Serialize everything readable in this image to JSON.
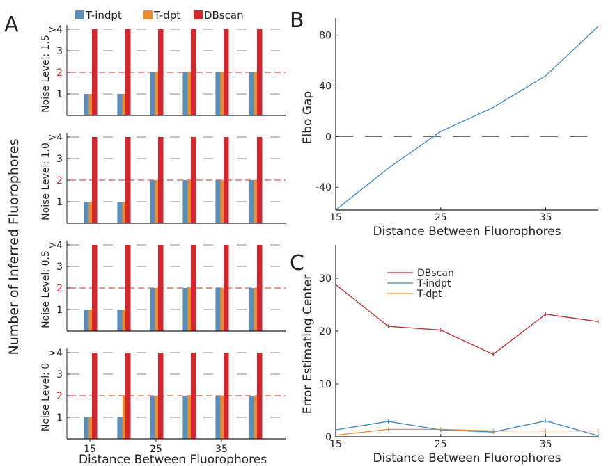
{
  "figure": {
    "panel_labels": [
      "A",
      "B",
      "C"
    ],
    "legend_a": [
      {
        "label": "T-indpt",
        "color": "#5b8fb9"
      },
      {
        "label": "T-dpt",
        "color": "#f08a24"
      },
      {
        "label": "DBscan",
        "color": "#d7252d"
      }
    ],
    "ylabel_a": "Number of Inferred Fluorophores",
    "xlabel": "Distance Between Fluorophores"
  },
  "chart_data": [
    {
      "panel": "A",
      "type": "bar",
      "facet_label": "Noise Level: 1.5",
      "categories": [
        "15",
        "20",
        "25",
        "30",
        "35",
        "40"
      ],
      "x_tick_labels": [
        "15",
        "25",
        "35"
      ],
      "y_tick_labels": [
        "1",
        "2",
        "3",
        ">4"
      ],
      "ylim": [
        0,
        4
      ],
      "reference_line": 2,
      "series": [
        {
          "name": "T-indpt",
          "values": [
            1,
            1,
            2,
            2,
            2,
            2
          ]
        },
        {
          "name": "T-dpt",
          "values": [
            1,
            1,
            2,
            2,
            2,
            2
          ]
        },
        {
          "name": "DBscan",
          "values": [
            4,
            4,
            4,
            4,
            4,
            4
          ]
        }
      ]
    },
    {
      "panel": "A",
      "type": "bar",
      "facet_label": "Noise Level: 1.0",
      "categories": [
        "15",
        "20",
        "25",
        "30",
        "35",
        "40"
      ],
      "x_tick_labels": [
        "15",
        "25",
        "35"
      ],
      "y_tick_labels": [
        "1",
        "2",
        "3",
        ">4"
      ],
      "ylim": [
        0,
        4
      ],
      "reference_line": 2,
      "series": [
        {
          "name": "T-indpt",
          "values": [
            1,
            1,
            2,
            2,
            2,
            2
          ]
        },
        {
          "name": "T-dpt",
          "values": [
            1,
            1,
            2,
            2,
            2,
            2
          ]
        },
        {
          "name": "DBscan",
          "values": [
            4,
            4,
            4,
            4,
            4,
            4
          ]
        }
      ]
    },
    {
      "panel": "A",
      "type": "bar",
      "facet_label": "Noise Level: 0.5",
      "categories": [
        "15",
        "20",
        "25",
        "30",
        "35",
        "40"
      ],
      "x_tick_labels": [
        "15",
        "25",
        "35"
      ],
      "y_tick_labels": [
        "1",
        "2",
        "3",
        ">4"
      ],
      "ylim": [
        0,
        4
      ],
      "reference_line": 2,
      "series": [
        {
          "name": "T-indpt",
          "values": [
            1,
            1,
            2,
            2,
            2,
            2
          ]
        },
        {
          "name": "T-dpt",
          "values": [
            1,
            1,
            2,
            2,
            2,
            2
          ]
        },
        {
          "name": "DBscan",
          "values": [
            4,
            4,
            4,
            4,
            4,
            4
          ]
        }
      ]
    },
    {
      "panel": "A",
      "type": "bar",
      "facet_label": "Noise Level: 0",
      "categories": [
        "15",
        "20",
        "25",
        "30",
        "35",
        "40"
      ],
      "x_tick_labels": [
        "15",
        "25",
        "35"
      ],
      "y_tick_labels": [
        "1",
        "2",
        "3",
        ">4"
      ],
      "ylim": [
        0,
        4
      ],
      "reference_line": 2,
      "series": [
        {
          "name": "T-indpt",
          "values": [
            1,
            1,
            2,
            2,
            2,
            2
          ]
        },
        {
          "name": "T-dpt",
          "values": [
            1,
            2,
            2,
            2,
            2,
            2
          ]
        },
        {
          "name": "DBscan",
          "values": [
            4,
            4,
            4,
            4,
            4,
            4
          ]
        }
      ]
    },
    {
      "panel": "B",
      "type": "line",
      "ylabel": "Elbo Gap",
      "xlabel": "Distance Between Fluorophores",
      "x": [
        15,
        20,
        25,
        30,
        35,
        40
      ],
      "x_tick_labels": [
        "15",
        "25",
        "35"
      ],
      "y_tick_labels": [
        "-40",
        "0",
        "40",
        "80"
      ],
      "xlim": [
        15,
        40
      ],
      "ylim": [
        -58,
        88
      ],
      "reference_line": 0,
      "series": [
        {
          "values": [
            -58,
            -25,
            4,
            23,
            48,
            87
          ],
          "color": "#3a87c3"
        }
      ]
    },
    {
      "panel": "C",
      "type": "line",
      "ylabel": "Error Estimating Center",
      "xlabel": "Distance Between Fluorophores",
      "x": [
        15,
        20,
        25,
        30,
        35,
        40
      ],
      "x_tick_labels": [
        "15",
        "25",
        "35"
      ],
      "y_tick_labels": [
        "0",
        "10",
        "20",
        "30"
      ],
      "xlim": [
        15,
        40
      ],
      "ylim": [
        0,
        35
      ],
      "series": [
        {
          "name": "DBscan",
          "values": [
            28.8,
            20.9,
            20.2,
            15.6,
            23.2,
            21.8
          ],
          "color": "#c6262e"
        },
        {
          "name": "T-indpt",
          "values": [
            1.3,
            2.9,
            1.3,
            0.9,
            3.0,
            0.2
          ],
          "color": "#3a87c3"
        },
        {
          "name": "T-dpt",
          "values": [
            0.3,
            1.4,
            1.4,
            1.1,
            1.1,
            1.1
          ],
          "color": "#f08a24"
        }
      ]
    }
  ]
}
